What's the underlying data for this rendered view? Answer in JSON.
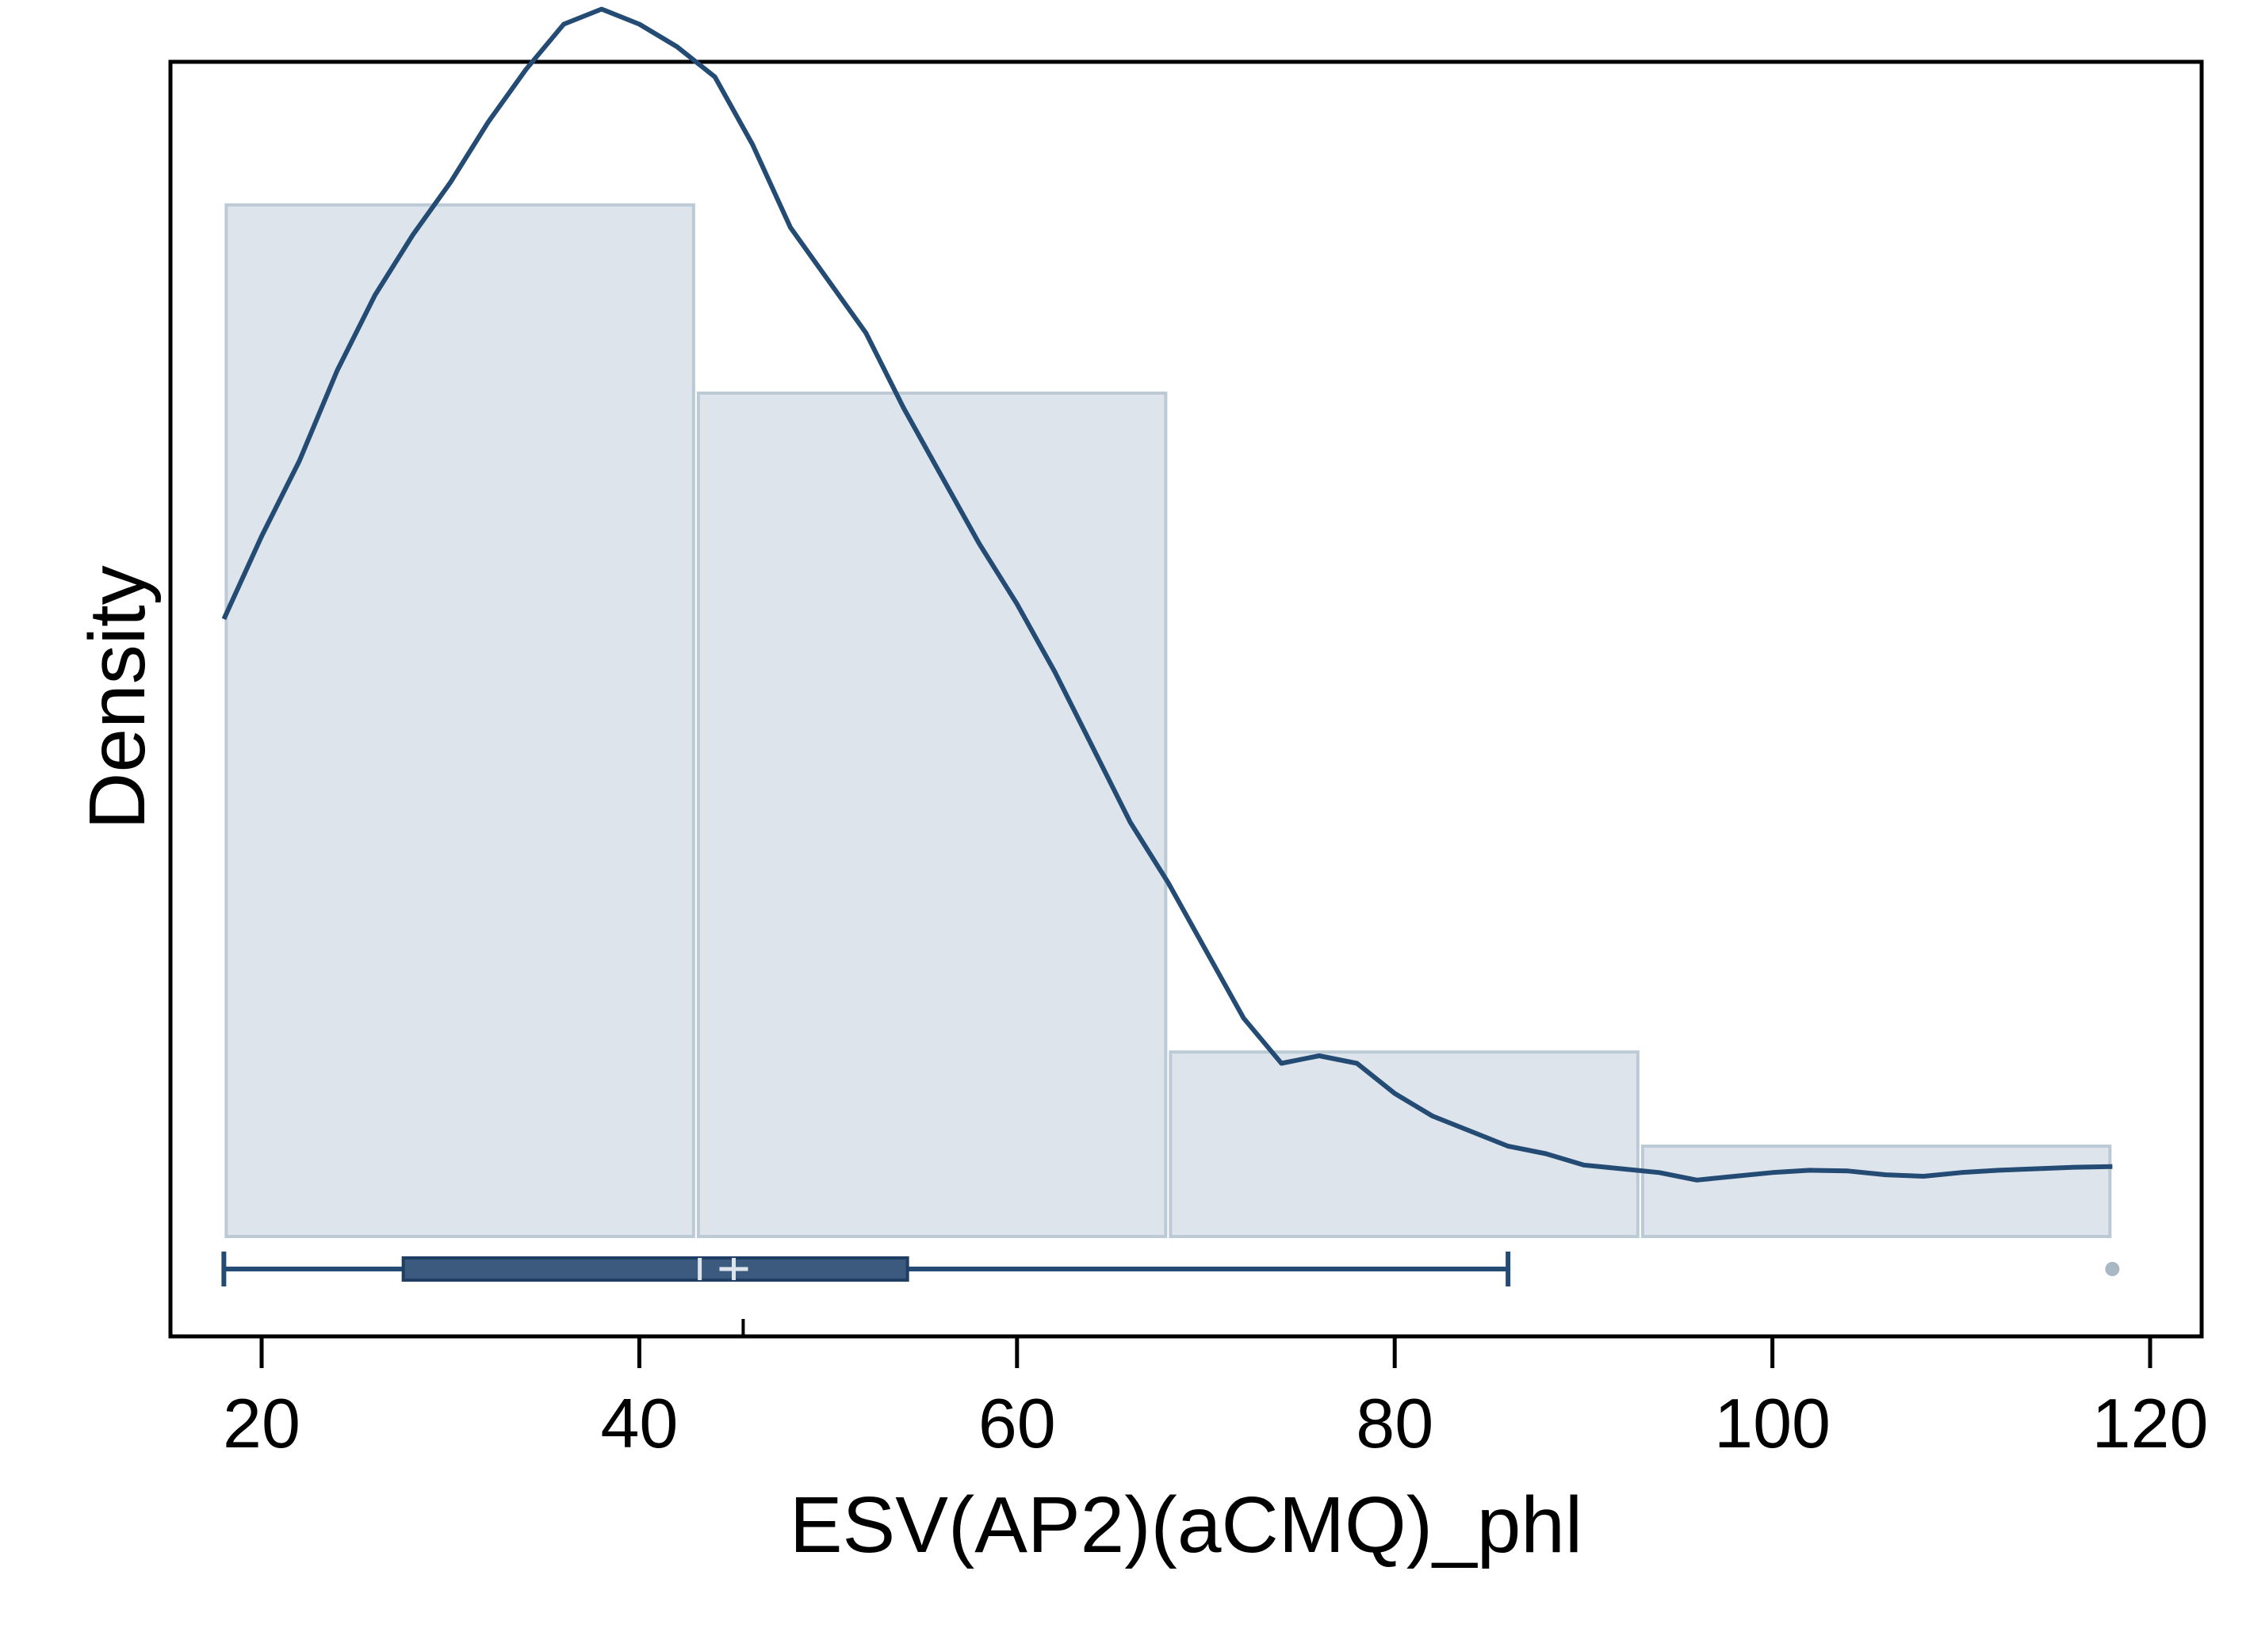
{
  "chart_data": {
    "type": "histogram",
    "xlabel": "ESV(AP2)(aCMQ)_phl",
    "ylabel": "Density",
    "xlim": [
      15,
      124
    ],
    "x_ticks": [
      20,
      40,
      60,
      80,
      100,
      120
    ],
    "y_ticks": [],
    "grid": false,
    "histogram": {
      "bins": [
        {
          "start": 18,
          "end": 43,
          "density": 0.0137
        },
        {
          "start": 43,
          "end": 68,
          "density": 0.0112
        },
        {
          "start": 68,
          "end": 93,
          "density": 0.00245
        },
        {
          "start": 93,
          "end": 118,
          "density": 0.0012
        }
      ],
      "fill_color": "#dde4eb",
      "stroke_color": "#bccad6"
    },
    "density_curve": {
      "color": "#244b73",
      "x": [
        18,
        20,
        22,
        24,
        26,
        28,
        30,
        32,
        34,
        36,
        38,
        40,
        42,
        44,
        46,
        48,
        50,
        52,
        54,
        56,
        58,
        60,
        62,
        64,
        66,
        68,
        70,
        72,
        74,
        76,
        78,
        80,
        82,
        84,
        86,
        88,
        90,
        92,
        94,
        96,
        98,
        100,
        102,
        104,
        106,
        108,
        110,
        112,
        114,
        116,
        118
      ],
      "y": [
        0.0082,
        0.0093,
        0.0103,
        0.0115,
        0.0125,
        0.0133,
        0.014,
        0.0148,
        0.0155,
        0.0161,
        0.0163,
        0.0161,
        0.0158,
        0.0154,
        0.0145,
        0.0134,
        0.0127,
        0.012,
        0.011,
        0.0101,
        0.0092,
        0.0084,
        0.0075,
        0.0065,
        0.0055,
        0.0047,
        0.0038,
        0.0029,
        0.0023,
        0.0024,
        0.0023,
        0.0019,
        0.0016,
        0.0014,
        0.0012,
        0.0011,
        0.00095,
        0.0009,
        0.00085,
        0.00075,
        0.0008,
        0.00085,
        0.00088,
        0.00087,
        0.00082,
        0.0008,
        0.00085,
        0.00088,
        0.0009,
        0.00092,
        0.00093
      ]
    },
    "boxplot": {
      "min": 18,
      "q1": 27.5,
      "median": 43.2,
      "mean": 45,
      "q3": 54.2,
      "max": 86,
      "outliers": [
        118
      ],
      "box_color": "#3b5a7e",
      "line_color": "#244b73",
      "marker_color": "#dde4eb",
      "outlier_color": "#aab8c6"
    },
    "rug_ticks": [
      45.5
    ]
  }
}
